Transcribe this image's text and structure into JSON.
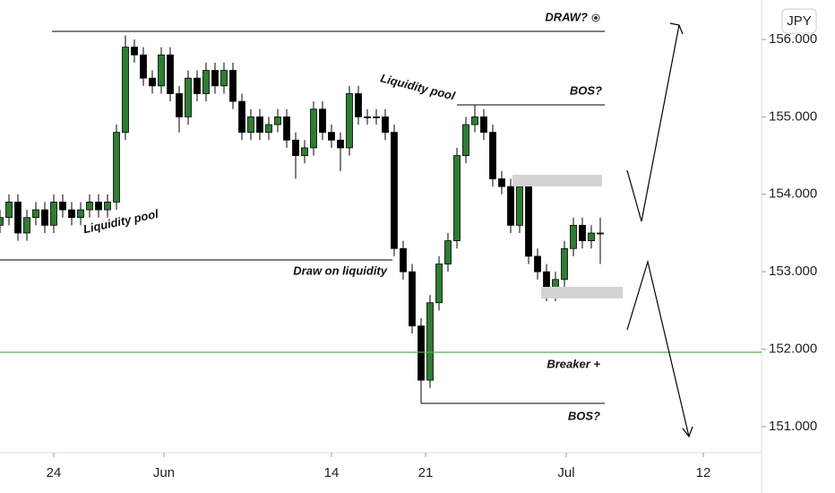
{
  "chart_data": {
    "type": "candlestick",
    "currency": "JPY",
    "x": [
      0,
      1,
      2,
      3,
      4,
      5,
      6,
      7,
      8,
      9,
      10,
      11,
      12,
      13,
      14,
      15,
      16,
      17,
      18,
      19,
      20,
      21,
      22,
      23,
      24,
      25,
      26,
      27,
      28,
      29,
      30,
      31,
      32,
      33,
      34,
      35,
      36,
      37,
      38,
      39,
      40,
      41,
      42,
      43,
      44,
      45,
      46,
      47,
      48,
      49,
      50,
      51,
      52,
      53,
      54,
      55,
      56,
      57,
      58,
      59,
      60,
      61,
      62,
      63,
      64,
      65,
      66,
      67
    ],
    "open": [
      153.6,
      153.7,
      153.9,
      153.5,
      153.7,
      153.8,
      153.6,
      153.9,
      153.8,
      153.7,
      153.8,
      153.9,
      153.8,
      153.9,
      154.8,
      155.9,
      155.8,
      155.5,
      155.4,
      155.8,
      155.3,
      155.0,
      155.5,
      155.3,
      155.6,
      155.4,
      155.6,
      155.2,
      154.8,
      155.0,
      154.8,
      154.9,
      155.0,
      154.7,
      154.5,
      154.6,
      155.1,
      154.8,
      154.7,
      154.6,
      155.3,
      155.0,
      155.0,
      155.0,
      154.8,
      153.3,
      153.0,
      152.3,
      151.6,
      152.6,
      153.1,
      153.4,
      154.5,
      154.9,
      155.0,
      154.8,
      154.2,
      154.1,
      153.6,
      154.1,
      153.2,
      153.0,
      152.7,
      152.9,
      153.3,
      153.6,
      153.4,
      153.5
    ],
    "high": [
      153.8,
      154.0,
      154.0,
      153.8,
      153.9,
      153.9,
      154.0,
      154.0,
      153.9,
      153.9,
      154.0,
      154.0,
      154.0,
      154.9,
      156.05,
      156.0,
      155.9,
      155.6,
      155.9,
      155.9,
      155.4,
      155.6,
      155.6,
      155.7,
      155.7,
      155.7,
      155.7,
      155.3,
      155.1,
      155.1,
      155.0,
      155.1,
      155.1,
      154.8,
      154.7,
      155.2,
      155.2,
      154.9,
      154.8,
      155.4,
      155.4,
      155.1,
      155.1,
      155.1,
      154.9,
      153.4,
      153.1,
      152.4,
      152.7,
      153.2,
      153.5,
      154.6,
      155.0,
      155.15,
      155.1,
      154.9,
      154.3,
      154.2,
      154.2,
      154.2,
      153.3,
      153.1,
      153.0,
      153.4,
      153.7,
      153.7,
      153.6,
      153.7
    ],
    "low": [
      153.5,
      153.6,
      153.4,
      153.4,
      153.6,
      153.5,
      153.5,
      153.7,
      153.6,
      153.6,
      153.7,
      153.7,
      153.7,
      153.8,
      154.7,
      155.7,
      155.4,
      155.3,
      155.3,
      155.2,
      154.8,
      154.9,
      155.2,
      155.2,
      155.3,
      155.3,
      155.1,
      154.7,
      154.7,
      154.7,
      154.7,
      154.8,
      154.6,
      154.2,
      154.4,
      154.5,
      154.7,
      154.6,
      154.3,
      154.5,
      154.9,
      154.9,
      154.9,
      154.7,
      153.2,
      152.9,
      152.2,
      151.3,
      151.5,
      152.5,
      153.0,
      153.3,
      154.4,
      154.8,
      154.7,
      154.1,
      154.0,
      153.5,
      153.5,
      153.1,
      152.9,
      152.62,
      152.62,
      152.8,
      153.2,
      153.3,
      153.3,
      153.1
    ],
    "close": [
      153.7,
      153.9,
      153.5,
      153.7,
      153.8,
      153.6,
      153.9,
      153.8,
      153.7,
      153.8,
      153.9,
      153.8,
      153.9,
      154.8,
      155.9,
      155.8,
      155.5,
      155.4,
      155.8,
      155.3,
      155.0,
      155.5,
      155.3,
      155.6,
      155.4,
      155.6,
      155.2,
      154.8,
      155.0,
      154.8,
      154.9,
      155.0,
      154.7,
      154.5,
      154.6,
      155.1,
      154.8,
      154.7,
      154.6,
      155.3,
      155.0,
      155.0,
      155.0,
      154.8,
      153.3,
      153.0,
      152.3,
      151.6,
      152.6,
      153.1,
      153.4,
      154.5,
      154.9,
      155.0,
      154.8,
      154.2,
      154.1,
      153.6,
      154.1,
      153.2,
      153.0,
      152.7,
      152.9,
      153.3,
      153.6,
      153.4,
      153.5,
      153.5
    ],
    "up_color": "#2e7d32",
    "down_color": "#000000",
    "xlim": [
      0,
      85
    ],
    "ylim": [
      150.664,
      156.509
    ],
    "xticks": [
      {
        "value": 6,
        "label": "24"
      },
      {
        "value": 18.3,
        "label": "Jun"
      },
      {
        "value": 37,
        "label": "14"
      },
      {
        "value": 47.5,
        "label": "21"
      },
      {
        "value": 63.2,
        "label": "Jul"
      },
      {
        "value": 78.5,
        "label": "12"
      }
    ],
    "yticks": [
      {
        "value": 151,
        "label": "151.000"
      },
      {
        "value": 152,
        "label": "152.000"
      },
      {
        "value": 153,
        "label": "153.000"
      },
      {
        "value": 154,
        "label": "154.000"
      },
      {
        "value": 155,
        "label": "155.000"
      },
      {
        "value": 156,
        "label": "156.000"
      }
    ],
    "annotations": {
      "draw": "DRAW?",
      "bos_top": "BOS?",
      "liquidity_pool_left": "Liquidity pool",
      "liquidity_pool_right": "Liquidity pool",
      "draw_on_liquidity": "Draw on liquidity",
      "breaker": "Breaker +",
      "bos_bottom": "BOS?"
    }
  }
}
